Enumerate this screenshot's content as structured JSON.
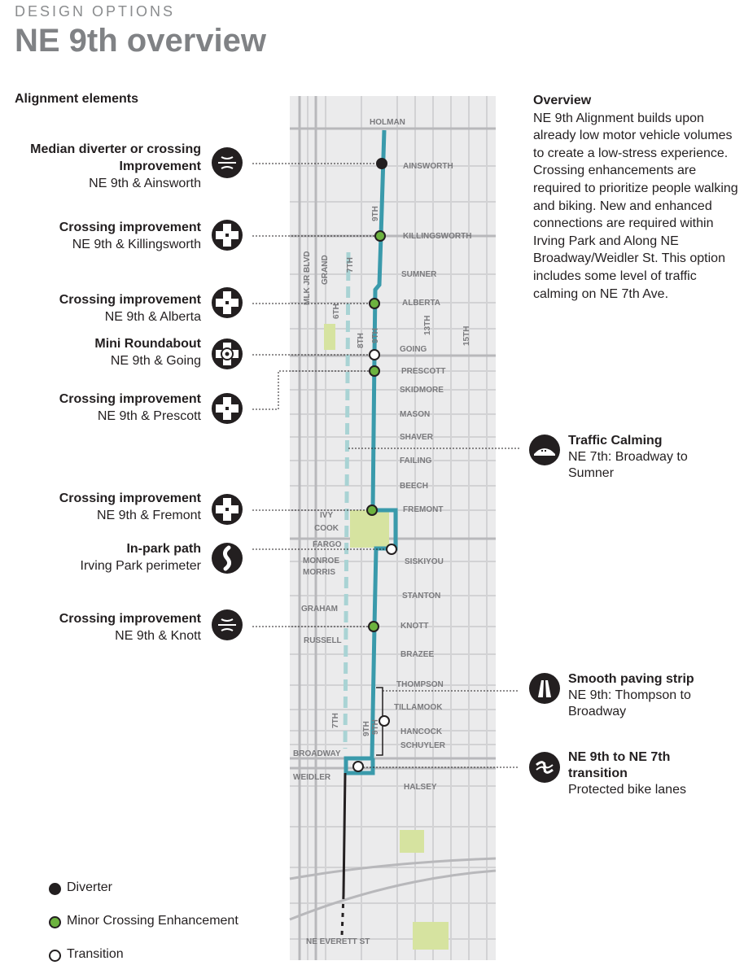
{
  "header": {
    "kicker": "DESIGN OPTIONS",
    "title": "NE 9th overview"
  },
  "section_title": "Alignment elements",
  "elements": [
    {
      "title": "Median diverter or crossing Improvement",
      "subtitle": "NE 9th & Ainsworth",
      "icon": "diverter-icon"
    },
    {
      "title": "Crossing improvement",
      "subtitle": "NE 9th & Killingsworth",
      "icon": "crossing-icon"
    },
    {
      "title": "Crossing improvement",
      "subtitle": "NE 9th & Alberta",
      "icon": "crossing-icon"
    },
    {
      "title": "Mini Roundabout",
      "subtitle": "NE 9th & Going",
      "icon": "roundabout-icon"
    },
    {
      "title": "Crossing improvement",
      "subtitle": "NE 9th & Prescott",
      "icon": "crossing-icon"
    },
    {
      "title": "Crossing improvement",
      "subtitle": "NE 9th & Fremont",
      "icon": "crossing-icon"
    },
    {
      "title": "In-park path",
      "subtitle": "Irving Park perimeter",
      "icon": "park-path-icon"
    },
    {
      "title": "Crossing improvement",
      "subtitle": "NE 9th & Knott",
      "icon": "diverter-icon"
    }
  ],
  "overview": {
    "heading": "Overview",
    "text": "NE 9th Alignment builds upon already low motor vehicle volumes to create a low-stress experience. Crossing enhancements are required to prioritize people walking and biking. New and enhanced connections are required within Irving Park and Along NE Broadway/Weidler St. This option includes some level of traffic calming on NE 7th Ave."
  },
  "right_elements": [
    {
      "title": "Traffic Calming",
      "subtitle": "NE 7th: Broadway to Sumner",
      "icon": "speed-hump-icon"
    },
    {
      "title": "Smooth paving strip",
      "subtitle": "NE 9th: Thompson to Broadway",
      "icon": "paving-strip-icon"
    },
    {
      "title": "NE 9th to NE 7th transition",
      "subtitle": "Protected bike lanes",
      "icon": "transition-icon"
    }
  ],
  "legend": [
    {
      "label": "Diverter",
      "color": "#231f20"
    },
    {
      "label": "Minor Crossing Enhancement",
      "color": "#6db33f"
    },
    {
      "label": "Transition",
      "color": "#ffffff"
    }
  ],
  "map": {
    "street_labels": [
      "HOLMAN",
      "AINSWORTH",
      "KILLINGSWORTH",
      "SUMNER",
      "ALBERTA",
      "GOING",
      "PRESCOTT",
      "SKIDMORE",
      "MASON",
      "SHAVER",
      "FAILING",
      "BEECH",
      "FREMONT",
      "IVY",
      "COOK",
      "FARGO",
      "SISKIYOU",
      "MONROE",
      "MORRIS",
      "STANTON",
      "GRAHAM",
      "KNOTT",
      "RUSSELL",
      "BRAZEE",
      "THOMPSON",
      "TILLAMOOK",
      "HANCOCK",
      "SCHUYLER",
      "BROADWAY",
      "WEIDLER",
      "HALSEY",
      "NE EVERETT ST"
    ],
    "vertical_labels": [
      "MLK JR BLVD",
      "GRAND",
      "7TH",
      "6TH",
      "8TH",
      "9TH",
      "13TH",
      "15TH",
      "9TH",
      "9TH",
      "7TH",
      "9TH"
    ],
    "colors": {
      "route": "#3a9aab",
      "route_dashed": "#a9d3d4",
      "park": "#d6e3a0",
      "street": "#d6d6d8",
      "block": "#ebebec",
      "diverter": "#231f20",
      "minor": "#6db33f"
    }
  }
}
